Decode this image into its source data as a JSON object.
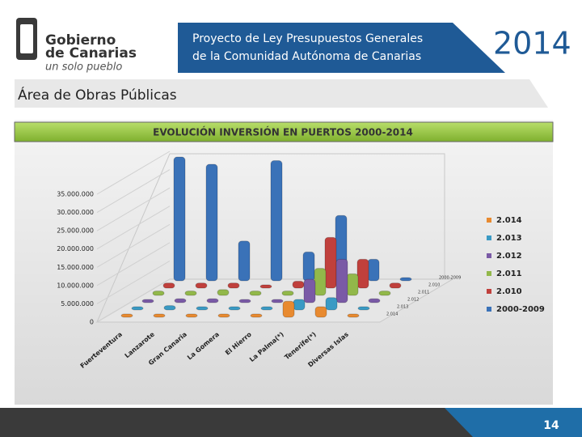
{
  "header": {
    "logo_name_1": "Gobierno",
    "logo_name_2": "de Canarias",
    "logo_motto": "un solo pueblo",
    "banner_line_1": "Proyecto de Ley Presupuestos Generales",
    "banner_line_2": "de la Comunidad Autónoma de Canarias",
    "year": "2014",
    "section": "Área de Obras Públicas"
  },
  "footer": {
    "page_number": "14"
  },
  "chart_data": {
    "type": "bar3d",
    "title": "EVOLUCIÓN INVERSIÓN EN PUERTOS 2000-2014",
    "categories": [
      "Fuerteventura",
      "Lanzarote",
      "Gran Canaria",
      "La Gomera",
      "El Hierro",
      "La Palma(*)",
      "Tenerife(*)",
      "Diversas Islas"
    ],
    "series": [
      {
        "name": "2000-2009",
        "color": "#3a72b8",
        "values": [
          33000000,
          31000000,
          10000000,
          32000000,
          7000000,
          17000000,
          5000000,
          0
        ]
      },
      {
        "name": "2.010",
        "color": "#c0403c",
        "values": [
          500000,
          500000,
          500000,
          0,
          1000000,
          13000000,
          7000000,
          500000
        ]
      },
      {
        "name": "2.011",
        "color": "#92b84a",
        "values": [
          300000,
          300000,
          700000,
          300000,
          300000,
          6500000,
          5000000,
          300000
        ]
      },
      {
        "name": "2.012",
        "color": "#7a5aa6",
        "values": [
          0,
          200000,
          200000,
          0,
          0,
          5500000,
          11000000,
          200000
        ]
      },
      {
        "name": "2.013",
        "color": "#3a9ac4",
        "values": [
          0,
          300000,
          0,
          0,
          0,
          2000000,
          2500000,
          0
        ]
      },
      {
        "name": "2.014",
        "color": "#e88a30",
        "values": [
          0,
          0,
          0,
          0,
          0,
          3500000,
          2000000,
          0
        ]
      }
    ],
    "ylim": [
      0,
      35000000
    ],
    "yticks": [
      {
        "value": 0,
        "label": "0"
      },
      {
        "value": 5000000,
        "label": "5.000.000"
      },
      {
        "value": 10000000,
        "label": "10.000.000"
      },
      {
        "value": 15000000,
        "label": "15.000.000"
      },
      {
        "value": 20000000,
        "label": "20.000.000"
      },
      {
        "value": 25000000,
        "label": "25.000.000"
      },
      {
        "value": 30000000,
        "label": "30.000.000"
      },
      {
        "value": 35000000,
        "label": "35.000.000"
      }
    ],
    "legend": "right"
  }
}
